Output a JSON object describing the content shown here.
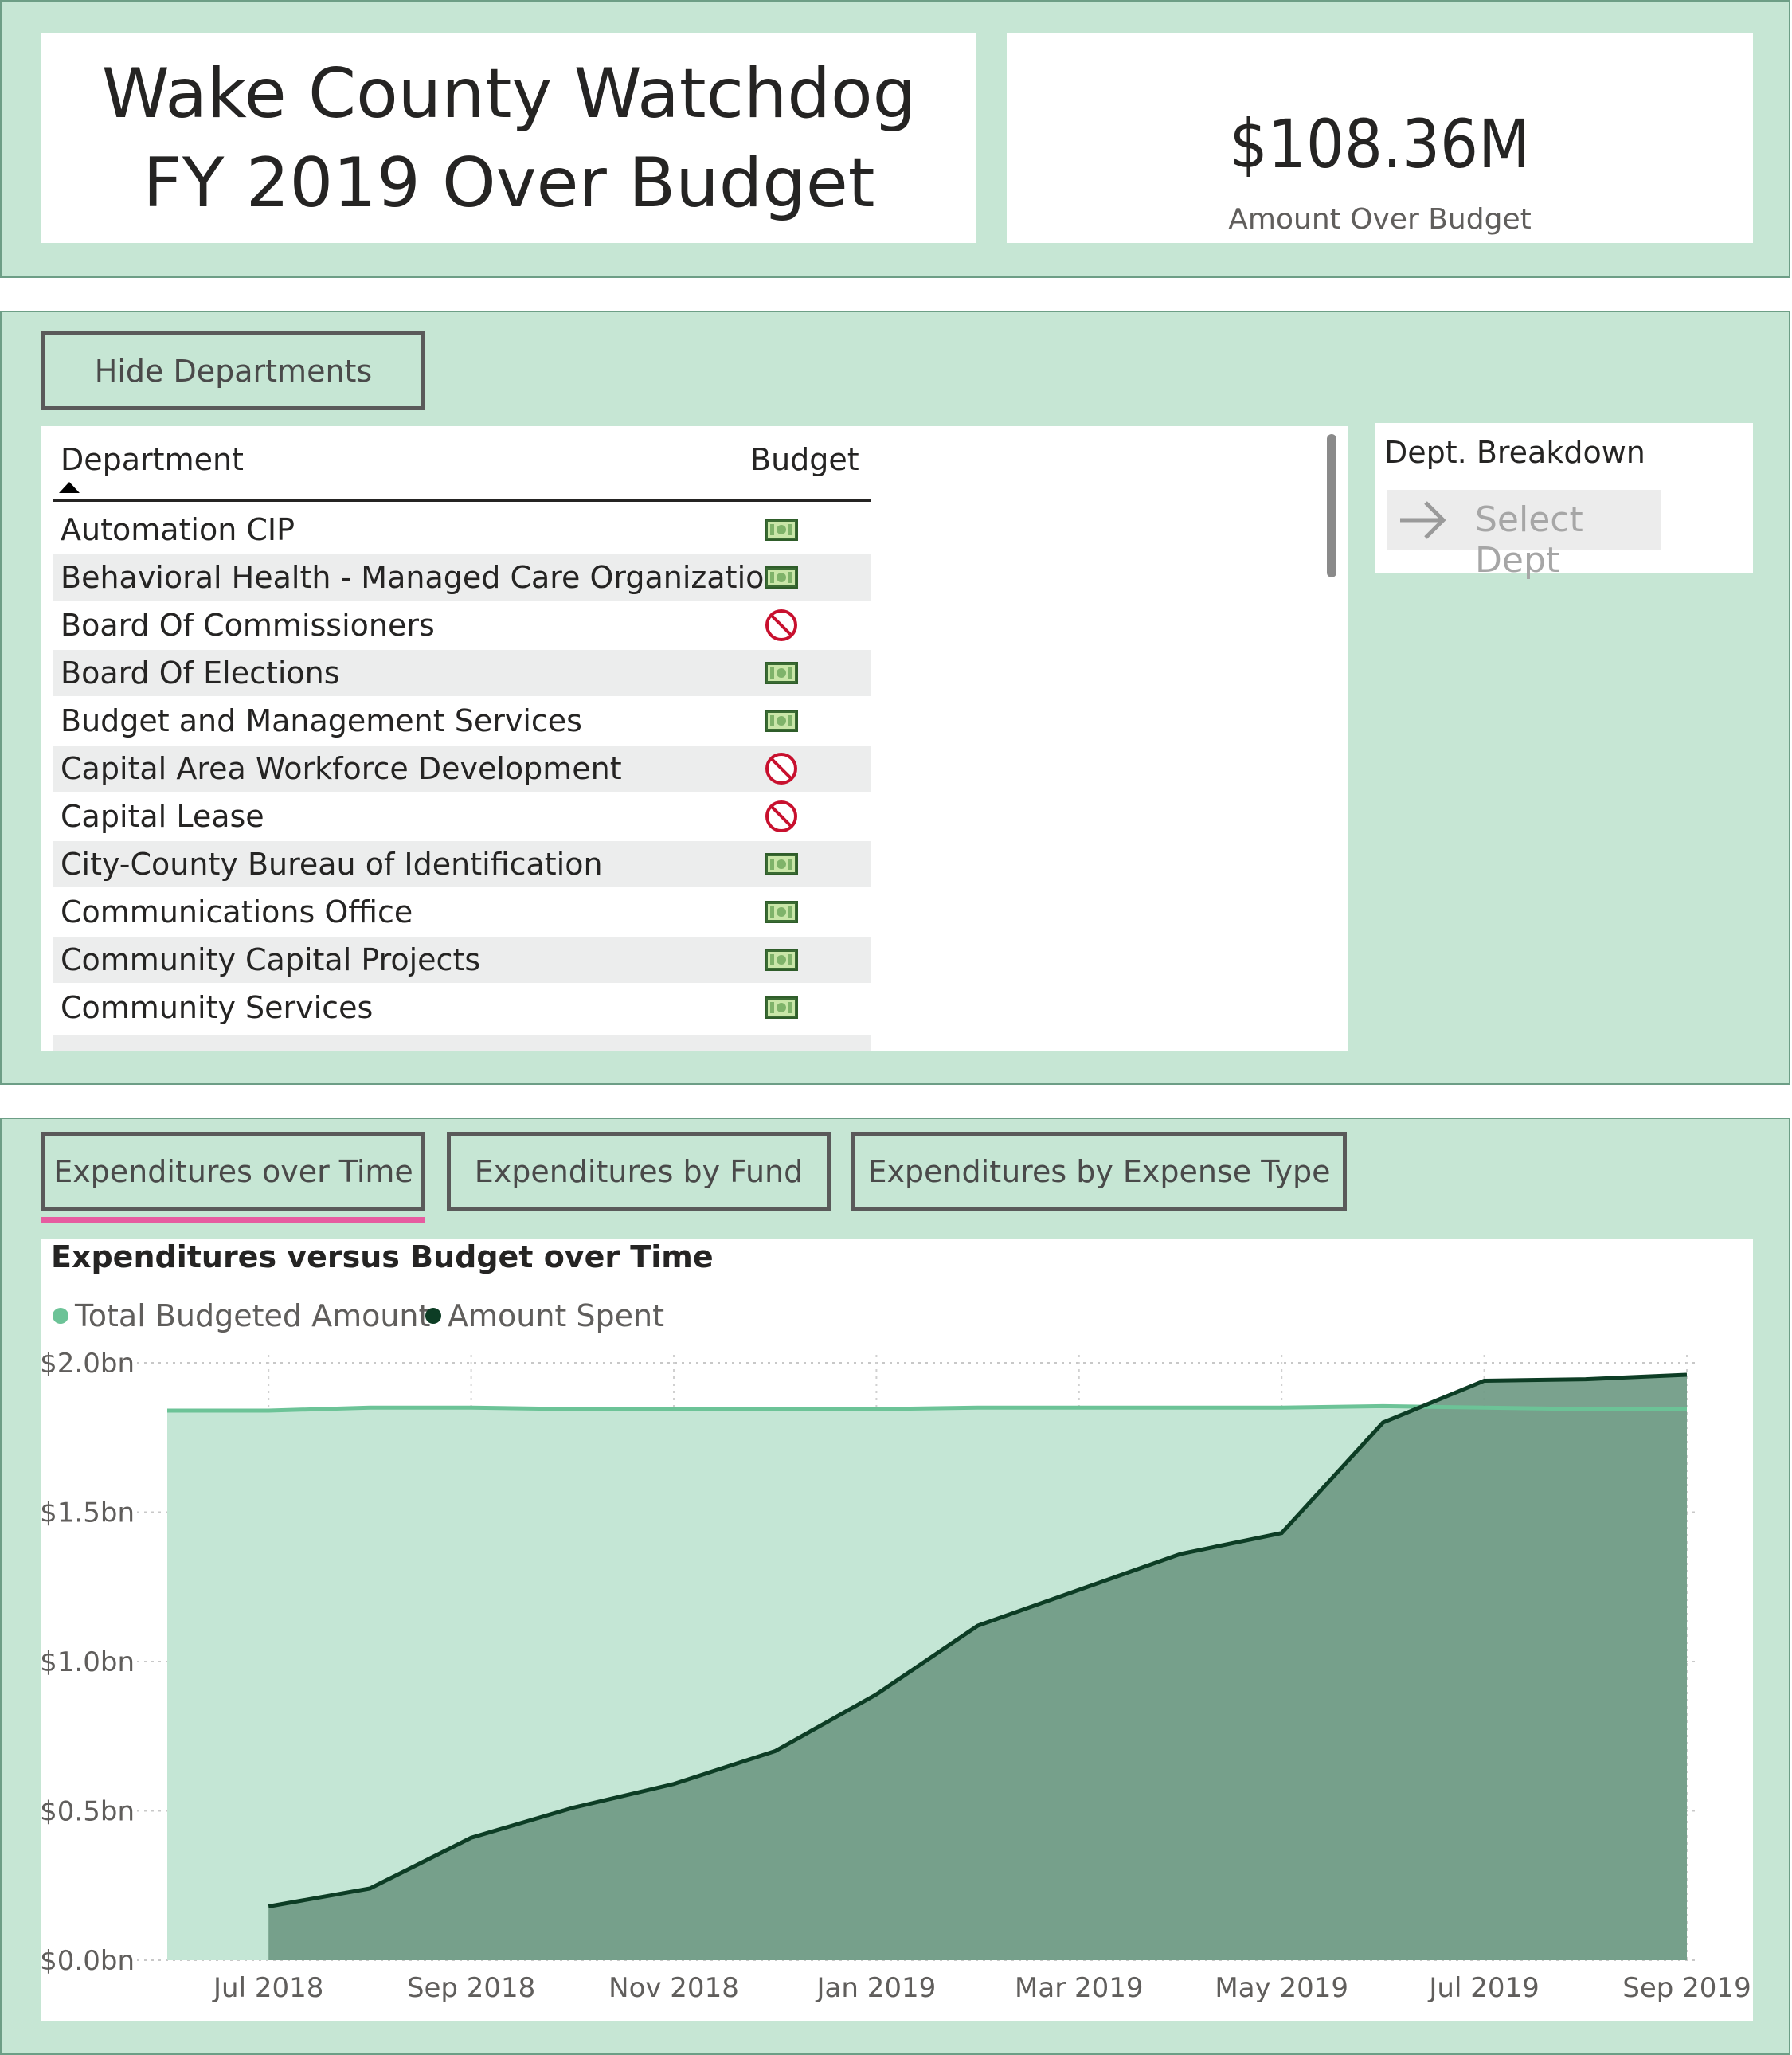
{
  "header": {
    "title_line1": "Wake County Watchdog",
    "title_line2": "FY 2019 Over Budget",
    "kpi_value": "$108.36M",
    "kpi_label": "Amount Over Budget"
  },
  "departments": {
    "toggle_label": "Hide Departments",
    "col_department": "Department",
    "col_budget": "Budget",
    "sort": "ascending",
    "rows": [
      {
        "name": "Automation CIP",
        "status": "money-icon"
      },
      {
        "name": "Behavioral Health - Managed Care Organization",
        "status": "money-icon"
      },
      {
        "name": "Board Of Commissioners",
        "status": "prohibited-icon"
      },
      {
        "name": "Board Of Elections",
        "status": "money-icon"
      },
      {
        "name": "Budget and Management Services",
        "status": "money-icon"
      },
      {
        "name": "Capital Area Workforce Development",
        "status": "prohibited-icon"
      },
      {
        "name": "Capital Lease",
        "status": "prohibited-icon"
      },
      {
        "name": "City-County Bureau of Identification",
        "status": "money-icon"
      },
      {
        "name": "Communications Office",
        "status": "money-icon"
      },
      {
        "name": "Community Capital Projects",
        "status": "money-icon"
      },
      {
        "name": "Community Services",
        "status": "money-icon"
      }
    ]
  },
  "breakdown": {
    "title": "Dept. Breakdown",
    "action_label": "Select Dept"
  },
  "tabs": [
    {
      "label": "Expenditures over Time",
      "active": true
    },
    {
      "label": "Expenditures by Fund",
      "active": false
    },
    {
      "label": "Expenditures by Expense Type",
      "active": false
    }
  ],
  "colors": {
    "background": "#c6e6d4",
    "budget_series": "#6cc397",
    "spent_series": "#0d3d25",
    "tab_underline": "#e65ca0"
  },
  "chart_data": {
    "type": "area",
    "title": "Expenditures versus Budget over Time",
    "x": [
      "Jun 2018",
      "Jul 2018",
      "Aug 2018",
      "Sep 2018",
      "Oct 2018",
      "Nov 2018",
      "Dec 2018",
      "Jan 2019",
      "Feb 2019",
      "Mar 2019",
      "Apr 2019",
      "May 2019",
      "Jun 2019",
      "Jul 2019",
      "Aug 2019",
      "Sep 2019"
    ],
    "x_tick_labels": [
      "Jul 2018",
      "Sep 2018",
      "Nov 2018",
      "Jan 2019",
      "Mar 2019",
      "May 2019",
      "Jul 2019",
      "Sep 2019"
    ],
    "y_tick_labels": [
      "$0.0bn",
      "$0.5bn",
      "$1.0bn",
      "$1.5bn",
      "$2.0bn"
    ],
    "ylim": [
      0,
      2.0
    ],
    "y_unit": "bn",
    "series": [
      {
        "name": "Total Budgeted Amount",
        "values": [
          1.84,
          1.84,
          1.85,
          1.85,
          1.845,
          1.845,
          1.845,
          1.845,
          1.85,
          1.85,
          1.85,
          1.85,
          1.855,
          1.85,
          1.845,
          1.845
        ]
      },
      {
        "name": "Amount Spent",
        "values": [
          null,
          0.18,
          0.24,
          0.41,
          0.51,
          0.59,
          0.7,
          0.89,
          1.12,
          1.24,
          1.36,
          1.43,
          1.8,
          1.94,
          1.945,
          1.96
        ]
      }
    ],
    "legend_position": "top-left",
    "grid": true
  }
}
